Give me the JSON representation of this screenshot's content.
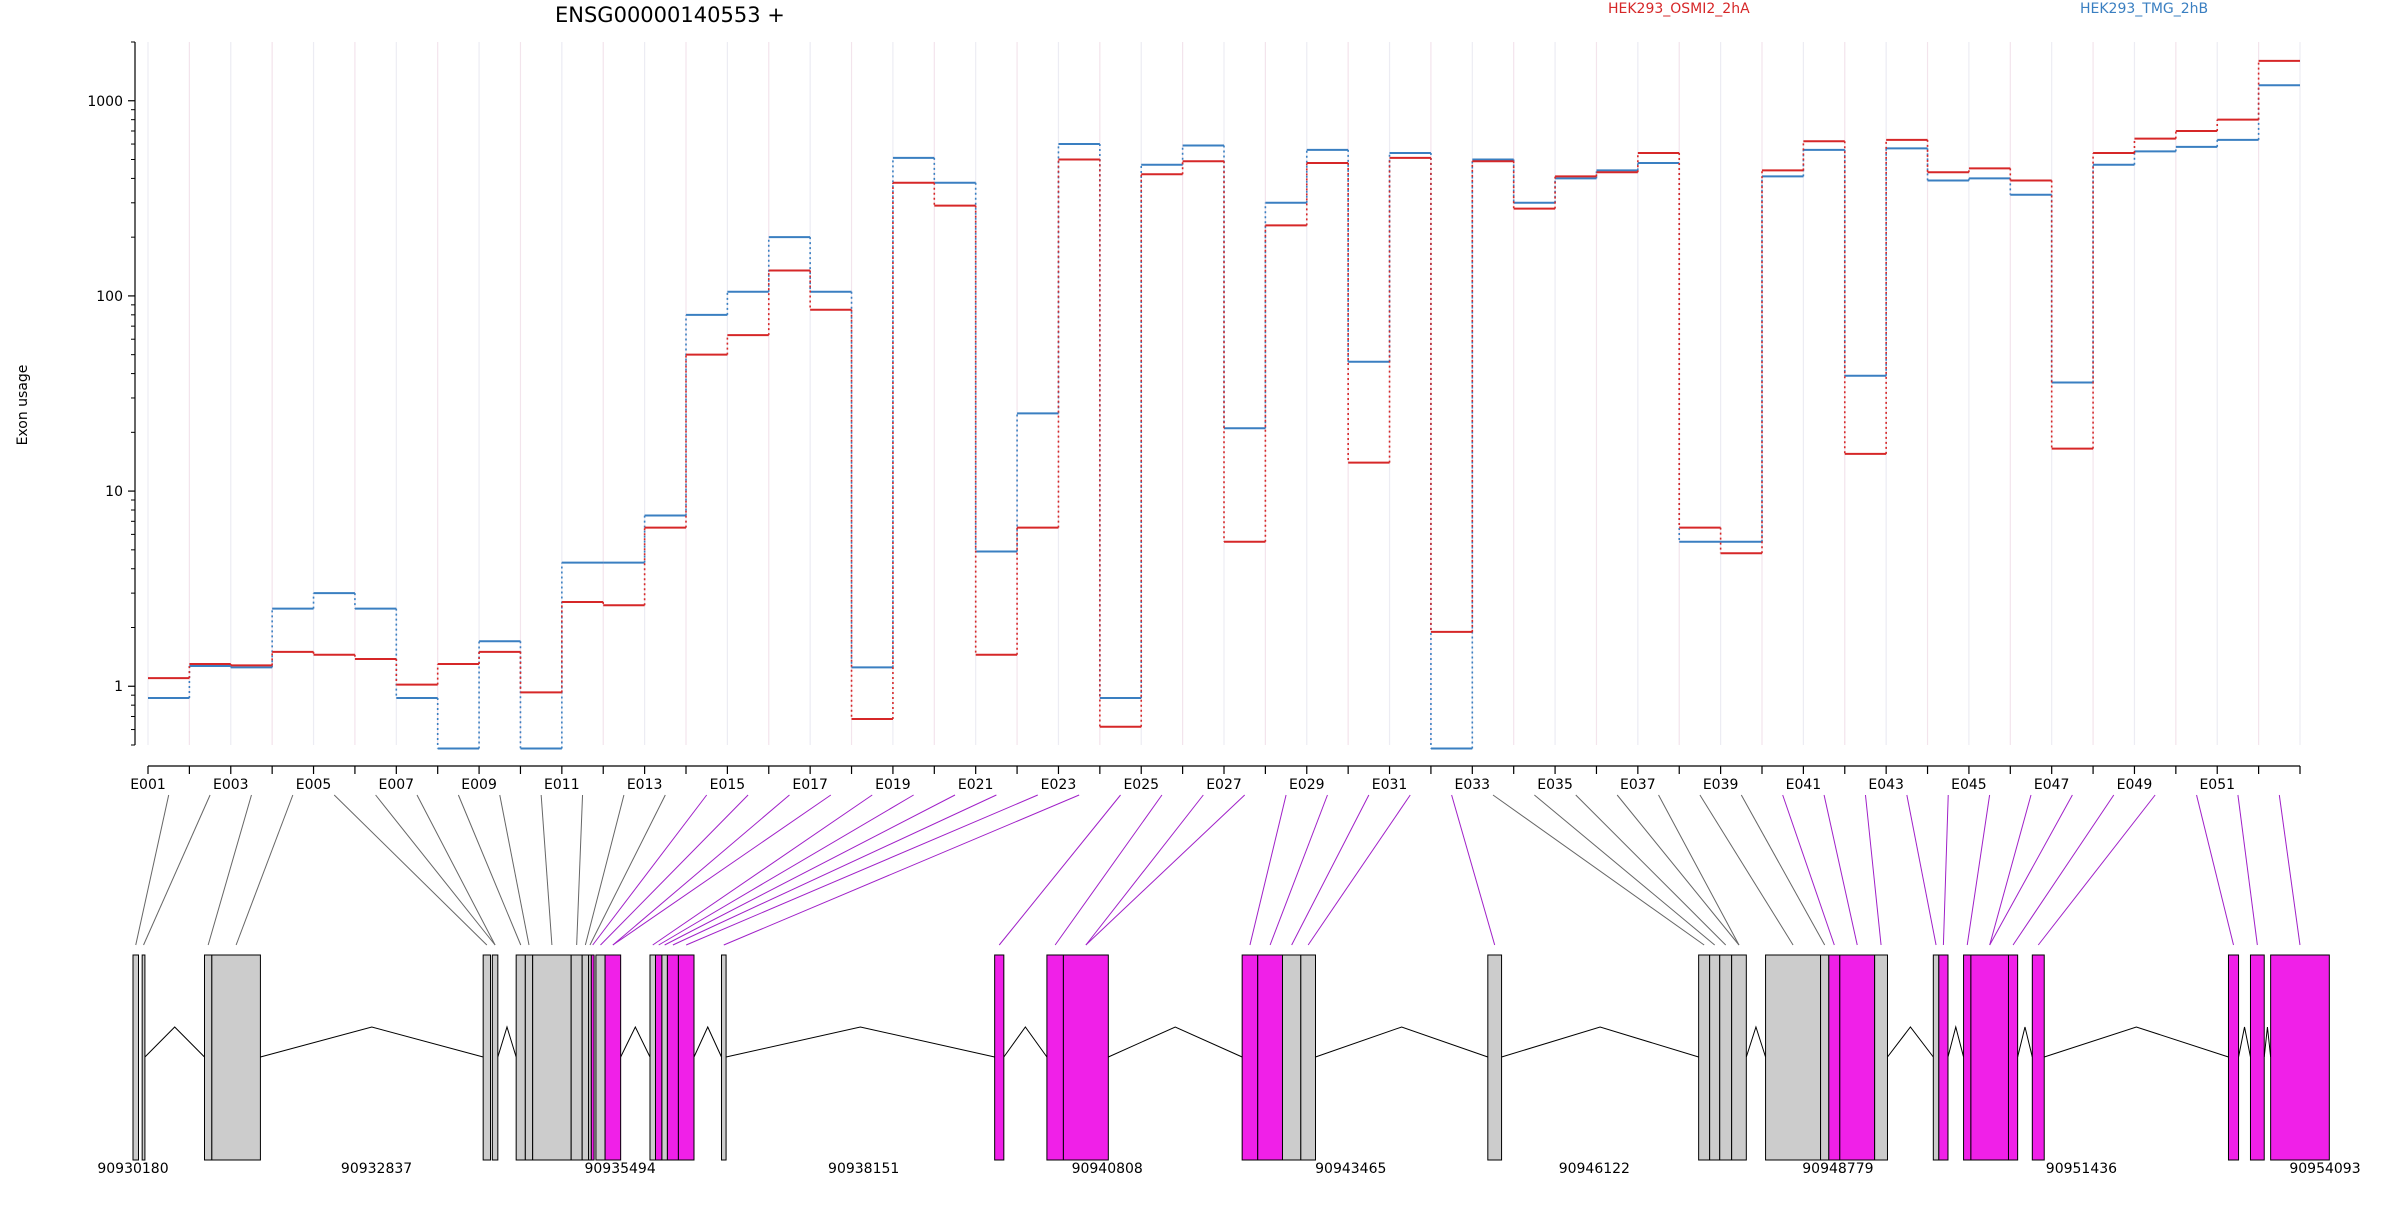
{
  "chart_data": {
    "type": "line",
    "title": "ENSG00000140553 +",
    "ylabel": "Exon usage",
    "yscale": "log",
    "ylim": [
      0.5,
      2000
    ],
    "yticks": [
      1,
      10,
      100,
      1000
    ],
    "ytick_labels": [
      "1",
      "10",
      "100",
      "1000"
    ],
    "x": [
      "E001",
      "E002",
      "E003",
      "E004",
      "E005",
      "E006",
      "E007",
      "E008",
      "E009",
      "E010",
      "E011",
      "E012",
      "E013",
      "E014",
      "E015",
      "E016",
      "E017",
      "E018",
      "E019",
      "E020",
      "E021",
      "E022",
      "E023",
      "E024",
      "E025",
      "E026",
      "E027",
      "E028",
      "E029",
      "E030",
      "E031",
      "E032",
      "E033",
      "E034",
      "E035",
      "E036",
      "E037",
      "E038",
      "E039",
      "E040",
      "E041",
      "E042",
      "E043",
      "E044",
      "E045",
      "E046",
      "E047",
      "E048",
      "E049",
      "E050",
      "E051",
      "E052"
    ],
    "xtick_labels": [
      "E001",
      "E003",
      "E005",
      "E007",
      "E009",
      "E011",
      "E013",
      "E015",
      "E017",
      "E019",
      "E021",
      "E023",
      "E025",
      "E027",
      "E029",
      "E031",
      "E033",
      "E035",
      "E037",
      "E039",
      "E041",
      "E043",
      "E045",
      "E047",
      "E049",
      "E051"
    ],
    "series": [
      {
        "name": "HEK293_OSMI2_2hA",
        "color": "#d62728",
        "values": [
          1.1,
          1.3,
          1.28,
          1.5,
          1.45,
          1.38,
          1.02,
          1.3,
          1.5,
          0.93,
          2.7,
          2.6,
          6.5,
          50,
          63,
          135,
          85,
          0.68,
          380,
          290,
          1.45,
          6.5,
          500,
          0.62,
          420,
          490,
          5.5,
          230,
          480,
          14,
          510,
          1.9,
          490,
          280,
          410,
          430,
          540,
          6.5,
          4.8,
          440,
          620,
          15.5,
          630,
          430,
          450,
          390,
          16.5,
          540,
          640,
          700,
          800,
          1600
        ]
      },
      {
        "name": "HEK293_TMG_2hB",
        "color": "#3a7fc1",
        "values": [
          0.87,
          1.27,
          1.25,
          2.5,
          3.0,
          2.5,
          0.87,
          0.48,
          1.7,
          0.48,
          4.3,
          4.3,
          7.5,
          80,
          105,
          200,
          105,
          1.25,
          510,
          380,
          4.9,
          25,
          600,
          0.87,
          470,
          590,
          21,
          300,
          560,
          46,
          540,
          0.48,
          500,
          300,
          400,
          440,
          480,
          5.5,
          5.5,
          410,
          560,
          39,
          570,
          390,
          400,
          330,
          36,
          470,
          550,
          580,
          630,
          1200
        ]
      }
    ],
    "exon_kind": [
      "g",
      "g",
      "g",
      "g",
      "g",
      "g",
      "g",
      "g",
      "g",
      "g",
      "g",
      "g",
      "g",
      "m",
      "m",
      "m",
      "m",
      "m",
      "m",
      "m",
      "m",
      "m",
      "m",
      "m",
      "m",
      "m",
      "m",
      "m",
      "m",
      "m",
      "m",
      "m",
      "g",
      "g",
      "g",
      "g",
      "g",
      "g",
      "g",
      "m",
      "m",
      "m",
      "m",
      "m",
      "m",
      "m",
      "m",
      "m",
      "m",
      "m",
      "m",
      "m"
    ],
    "genomic_ticks": [
      "90930180",
      "90932837",
      "90935494",
      "90938151",
      "90940808",
      "90943465",
      "90946122",
      "90948779",
      "90951436",
      "90954093"
    ],
    "genomic_range": [
      90930180,
      90954093
    ],
    "gene_blocks": [
      {
        "start": 90930180,
        "end": 90930240,
        "color": "#cccccc"
      },
      {
        "start": 90930280,
        "end": 90930310,
        "color": "#cccccc"
      },
      {
        "start": 90930960,
        "end": 90931040,
        "color": "#cccccc"
      },
      {
        "start": 90931040,
        "end": 90931570,
        "color": "#cccccc"
      },
      {
        "start": 90934000,
        "end": 90934080,
        "color": "#cccccc"
      },
      {
        "start": 90934100,
        "end": 90934160,
        "color": "#cccccc"
      },
      {
        "start": 90934360,
        "end": 90934460,
        "color": "#cccccc"
      },
      {
        "start": 90934460,
        "end": 90934540,
        "color": "#cccccc"
      },
      {
        "start": 90934540,
        "end": 90934960,
        "color": "#cccccc"
      },
      {
        "start": 90934960,
        "end": 90935080,
        "color": "#cccccc"
      },
      {
        "start": 90935080,
        "end": 90935150,
        "color": "#cccccc"
      },
      {
        "start": 90935150,
        "end": 90935180,
        "color": "#cccccc"
      },
      {
        "start": 90935180,
        "end": 90935210,
        "color": "#f020e8"
      },
      {
        "start": 90935230,
        "end": 90935330,
        "color": "#cccccc"
      },
      {
        "start": 90935330,
        "end": 90935500,
        "color": "#f020e8"
      },
      {
        "start": 90935820,
        "end": 90935880,
        "color": "#cccccc"
      },
      {
        "start": 90935880,
        "end": 90935950,
        "color": "#f020e8"
      },
      {
        "start": 90935950,
        "end": 90936010,
        "color": "#cccccc"
      },
      {
        "start": 90936010,
        "end": 90936130,
        "color": "#f020e8"
      },
      {
        "start": 90936130,
        "end": 90936300,
        "color": "#f020e8"
      },
      {
        "start": 90936600,
        "end": 90936650,
        "color": "#cccccc"
      },
      {
        "start": 90939580,
        "end": 90939680,
        "color": "#f020e8"
      },
      {
        "start": 90940150,
        "end": 90940330,
        "color": "#f020e8"
      },
      {
        "start": 90940330,
        "end": 90940820,
        "color": "#f020e8"
      },
      {
        "start": 90942280,
        "end": 90942450,
        "color": "#f020e8"
      },
      {
        "start": 90942450,
        "end": 90942720,
        "color": "#f020e8"
      },
      {
        "start": 90942720,
        "end": 90942920,
        "color": "#cccccc"
      },
      {
        "start": 90942920,
        "end": 90943080,
        "color": "#cccccc"
      },
      {
        "start": 90944960,
        "end": 90945110,
        "color": "#cccccc"
      },
      {
        "start": 90947260,
        "end": 90947380,
        "color": "#cccccc"
      },
      {
        "start": 90947380,
        "end": 90947490,
        "color": "#cccccc"
      },
      {
        "start": 90947490,
        "end": 90947620,
        "color": "#cccccc"
      },
      {
        "start": 90947620,
        "end": 90947780,
        "color": "#cccccc"
      },
      {
        "start": 90947990,
        "end": 90948590,
        "color": "#cccccc"
      },
      {
        "start": 90948590,
        "end": 90948680,
        "color": "#cccccc"
      },
      {
        "start": 90948680,
        "end": 90948800,
        "color": "#f020e8"
      },
      {
        "start": 90948800,
        "end": 90949180,
        "color": "#f020e8"
      },
      {
        "start": 90949180,
        "end": 90949320,
        "color": "#cccccc"
      },
      {
        "start": 90949820,
        "end": 90949880,
        "color": "#cccccc"
      },
      {
        "start": 90949880,
        "end": 90949980,
        "color": "#f020e8"
      },
      {
        "start": 90950150,
        "end": 90950230,
        "color": "#f020e8"
      },
      {
        "start": 90950230,
        "end": 90950640,
        "color": "#f020e8"
      },
      {
        "start": 90950640,
        "end": 90950740,
        "color": "#f020e8"
      },
      {
        "start": 90950900,
        "end": 90951030,
        "color": "#f020e8"
      },
      {
        "start": 90953040,
        "end": 90953150,
        "color": "#f020e8"
      },
      {
        "start": 90953280,
        "end": 90953430,
        "color": "#f020e8"
      },
      {
        "start": 90953500,
        "end": 90954140,
        "color": "#f020e8"
      }
    ]
  }
}
